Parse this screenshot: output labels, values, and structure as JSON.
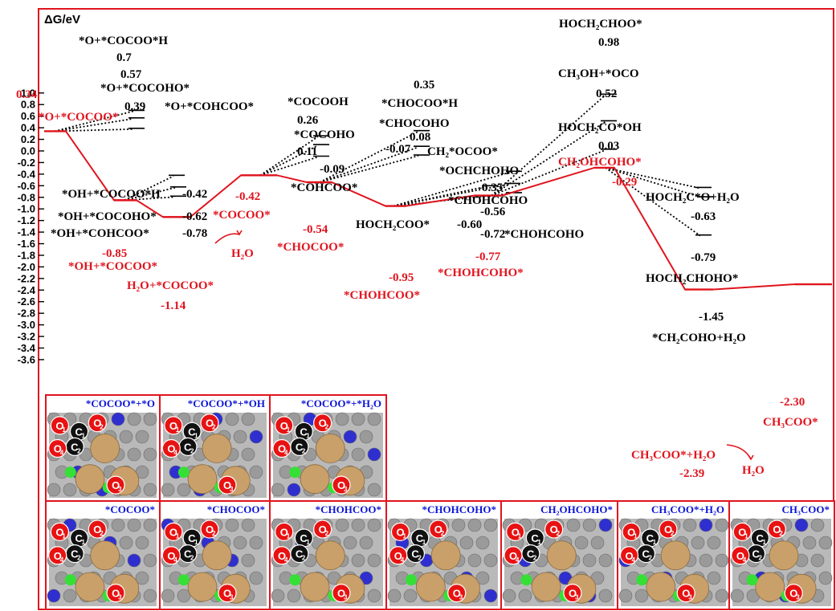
{
  "chart_data": {
    "type": "line",
    "ylabel": "ΔG/eV",
    "ylim": [
      -3.7,
      1.1
    ],
    "yticks": [
      "1.0",
      "0.8",
      "0.6",
      "0.4",
      "0.2",
      "0.0",
      "-0.2",
      "-0.4",
      "-0.6",
      "-0.8",
      "-1.0",
      "-1.2",
      "-1.4",
      "-1.6",
      "-1.8",
      "-2.0",
      "-2.2",
      "-2.4",
      "-2.6",
      "-2.8",
      "-3.0",
      "-3.2",
      "-3.4",
      "-3.6"
    ],
    "main_path": {
      "color": "#e0141e",
      "levels": [
        {
          "name": "*O+*COCOO*",
          "value": "0.34",
          "y": 0.34
        },
        {
          "name": "*OH+*COCOO*",
          "value": "-0.85",
          "y": -0.85
        },
        {
          "name": "H2O+*COCOO*",
          "value": "-1.14",
          "y": -1.14
        },
        {
          "name": "*COCOO*",
          "value": "-0.42",
          "y": -0.42
        },
        {
          "name": "*CHOCOO*",
          "value": "-0.54",
          "y": -0.54
        },
        {
          "name": "*CHOHCOO*",
          "value": "-0.95",
          "y": -0.95
        },
        {
          "name": "*CHOHCOHO*",
          "value": "-0.77",
          "y": -0.77
        },
        {
          "name": "CH2OHCOHO*",
          "value": "-0.29",
          "y": -0.29
        },
        {
          "name": "CH3COO*+H2O",
          "value": "-2.39",
          "y": -2.39
        },
        {
          "name": "CH3COO*",
          "value": "-2.30",
          "y": -2.3
        }
      ],
      "h2o_release_labels": [
        "H2O",
        "H2O"
      ]
    },
    "side_branches": [
      {
        "from": "*O+*COCOO*",
        "levels": [
          {
            "name": "*O+*COCOO*H",
            "value": "0.7",
            "y": 0.7
          },
          {
            "name": "*O+*COCOHO*",
            "value": "0.57",
            "y": 0.57
          },
          {
            "name": "*O+*COHCOO*",
            "value": "0.39",
            "y": 0.39
          }
        ]
      },
      {
        "from": "*OH+*COCOO*",
        "levels": [
          {
            "name": "*OH+*COCOO*H",
            "value": "-0.42",
            "y": -0.42
          },
          {
            "name": "*OH+*COCOHO*",
            "value": "-0.62",
            "y": -0.62
          },
          {
            "name": "*OH+*COHCOO*",
            "value": "-0.78",
            "y": -0.78
          }
        ]
      },
      {
        "from": "*COCOO*",
        "levels": [
          {
            "name": "*COCOOH",
            "value": "0.26",
            "y": 0.26
          },
          {
            "name": "*COCOHO",
            "value": "0.11",
            "y": 0.11
          },
          {
            "name": "*COHCOO*",
            "value": "-0.09",
            "y": -0.09
          }
        ]
      },
      {
        "from": "*CHOCOO*",
        "levels": [
          {
            "name": "*CHOCOO*H",
            "value": "0.35",
            "y": 0.35
          },
          {
            "name": "*CHOCOHO",
            "value": "0.08",
            "y": 0.08
          },
          {
            "name": "CH2*OCOO*",
            "value": "-0.07",
            "y": -0.07
          }
        ]
      },
      {
        "from": "*CHOHCOO*",
        "levels": [
          {
            "name": "*OCHCHOHO",
            "value": "-0.35",
            "y": -0.35
          },
          {
            "name": "*CHOHCOHO",
            "value": "-0.56",
            "y": -0.56
          },
          {
            "name": "HOCH2COO*",
            "value": "-0.60",
            "y": -0.6
          },
          {
            "name": "*CHOHCOHO",
            "value": "-0.72",
            "y": -0.72
          }
        ]
      },
      {
        "from": "*CHOHCOHO*",
        "levels": [
          {
            "name": "HOCH2CHOO*",
            "value": "0.98",
            "y": 0.98
          },
          {
            "name": "CH3OH+*OCO",
            "value": "0.52",
            "y": 0.52
          },
          {
            "name": "HOCH2CO*OH",
            "value": "0.03",
            "y": 0.03
          }
        ]
      },
      {
        "from": "CH2OHCOHO*",
        "levels": [
          {
            "name": "HOCH2C*O+H2O",
            "value": "-0.63",
            "y": -0.63
          },
          {
            "name": "HOCH2CHOHO*",
            "value": "-0.79",
            "y": -0.79
          },
          {
            "name": "*CH2COHO+H2O",
            "value": "-1.45",
            "y": -1.45
          }
        ]
      }
    ],
    "structure_panels": [
      {
        "title": "*COCOO*+*O",
        "atoms": [
          "O1",
          "O2",
          "C1",
          "C2",
          "O3",
          "O4"
        ]
      },
      {
        "title": "*COCOO*+*OH",
        "atoms": [
          "O1",
          "O2",
          "C1",
          "C2",
          "O3",
          "O4"
        ]
      },
      {
        "title": "*COCOO*+*H2O",
        "atoms": [
          "O1",
          "O2",
          "C1",
          "C2",
          "O3",
          "O4"
        ]
      },
      {
        "title": "*COCOO*",
        "atoms": [
          "O1",
          "O2",
          "C1",
          "C2",
          "O3",
          "O4"
        ]
      },
      {
        "title": "*CHOCOO*",
        "atoms": [
          "O1",
          "O2",
          "C1",
          "C2",
          "O3",
          "O4"
        ]
      },
      {
        "title": "*CHOHCOO*",
        "atoms": [
          "O1",
          "O2",
          "C1",
          "C2",
          "O3",
          "O4"
        ]
      },
      {
        "title": "*CHOHCOHO*",
        "atoms": [
          "O1",
          "O2",
          "C1",
          "C2",
          "O3",
          "O4"
        ]
      },
      {
        "title": "CH2OHCOHO*",
        "atoms": [
          "O1",
          "O2",
          "C1",
          "C2",
          "O3",
          "O4"
        ]
      },
      {
        "title": "CH3COO*+H2O",
        "atoms": [
          "O1",
          "O2",
          "C1",
          "C2",
          "O3",
          "O4"
        ]
      },
      {
        "title": "CH3COO*",
        "atoms": [
          "O1",
          "O2",
          "C1",
          "C2",
          "O3",
          "O4"
        ]
      }
    ]
  },
  "colors": {
    "main": "#e0141e",
    "black": "#000000",
    "panel_title": "#0a14d8",
    "cu": "#c9a06a",
    "o": "#e81212",
    "c": "#111111",
    "h": "#35e035",
    "n": "#2f2fd0",
    "surface": "#9a9a9a"
  }
}
